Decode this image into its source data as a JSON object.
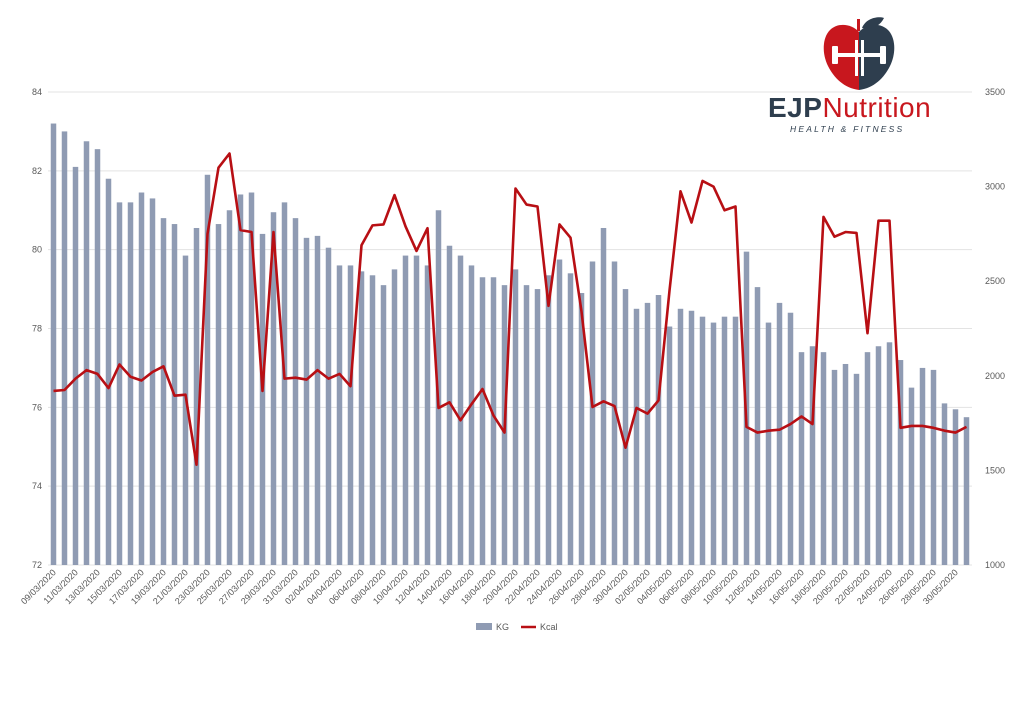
{
  "brand": {
    "name_part1": "EJP",
    "name_part2": "Nutrition",
    "tagline": "HEALTH & FITNESS",
    "colors": {
      "navy": "#2e3e4e",
      "red": "#c8171e"
    }
  },
  "chart_data": {
    "type": "bar",
    "dates": [
      "09/03/2020",
      "10/03/2020",
      "11/03/2020",
      "12/03/2020",
      "13/03/2020",
      "14/03/2020",
      "15/03/2020",
      "16/03/2020",
      "17/03/2020",
      "18/03/2020",
      "19/03/2020",
      "20/03/2020",
      "21/03/2020",
      "22/03/2020",
      "23/03/2020",
      "24/03/2020",
      "25/03/2020",
      "26/03/2020",
      "27/03/2020",
      "28/03/2020",
      "29/03/2020",
      "30/03/2020",
      "31/03/2020",
      "01/04/2020",
      "02/04/2020",
      "03/04/2020",
      "04/04/2020",
      "05/04/2020",
      "06/04/2020",
      "07/04/2020",
      "08/04/2020",
      "09/04/2020",
      "10/04/2020",
      "11/04/2020",
      "12/04/2020",
      "13/04/2020",
      "14/04/2020",
      "15/04/2020",
      "16/04/2020",
      "17/04/2020",
      "18/04/2020",
      "19/04/2020",
      "20/04/2020",
      "21/04/2020",
      "22/04/2020",
      "23/04/2020",
      "24/04/2020",
      "25/04/2020",
      "26/04/2020",
      "27/04/2020",
      "28/04/2020",
      "29/04/2020",
      "30/04/2020",
      "01/05/2020",
      "02/05/2020",
      "03/05/2020",
      "04/05/2020",
      "05/05/2020",
      "06/05/2020",
      "07/05/2020",
      "08/05/2020",
      "09/05/2020",
      "10/05/2020",
      "11/05/2020",
      "12/05/2020",
      "13/05/2020",
      "14/05/2020",
      "15/05/2020",
      "16/05/2020",
      "17/05/2020",
      "18/05/2020",
      "19/05/2020",
      "20/05/2020",
      "21/05/2020",
      "22/05/2020",
      "23/05/2020",
      "24/05/2020",
      "25/05/2020",
      "26/05/2020",
      "27/05/2020",
      "28/05/2020",
      "29/05/2020",
      "30/05/2020",
      "31/05/2020"
    ],
    "tick_labels": [
      "09/03/2020",
      "11/03/2020",
      "13/03/2020",
      "15/03/2020",
      "17/03/2020",
      "19/03/2020",
      "21/03/2020",
      "23/03/2020",
      "25/03/2020",
      "27/03/2020",
      "29/03/2020",
      "31/03/2020",
      "02/04/2020",
      "04/04/2020",
      "06/04/2020",
      "08/04/2020",
      "10/04/2020",
      "12/04/2020",
      "14/04/2020",
      "16/04/2020",
      "18/04/2020",
      "20/04/2020",
      "22/04/2020",
      "24/04/2020",
      "26/04/2020",
      "28/04/2020",
      "30/04/2020",
      "02/05/2020",
      "04/05/2020",
      "06/05/2020",
      "08/05/2020",
      "10/05/2020",
      "12/05/2020",
      "14/05/2020",
      "16/05/2020",
      "18/05/2020",
      "20/05/2020",
      "22/05/2020",
      "24/05/2020",
      "26/05/2020",
      "28/05/2020",
      "30/05/2020"
    ],
    "series": [
      {
        "name": "KG",
        "type": "bar",
        "axis": "left",
        "color": "#8f9bb3",
        "values": [
          83.2,
          83.0,
          82.1,
          82.75,
          82.55,
          81.8,
          81.2,
          81.2,
          81.45,
          81.3,
          80.8,
          80.65,
          79.85,
          80.55,
          81.9,
          80.65,
          81.0,
          81.4,
          81.45,
          80.4,
          80.95,
          81.2,
          80.8,
          80.3,
          80.35,
          80.05,
          79.6,
          79.6,
          79.45,
          79.35,
          79.1,
          79.5,
          79.85,
          79.85,
          79.6,
          81.0,
          80.1,
          79.85,
          79.6,
          79.3,
          79.3,
          79.1,
          79.5,
          79.1,
          79.0,
          79.35,
          79.75,
          79.4,
          78.9,
          79.7,
          80.55,
          79.7,
          79.0,
          78.5,
          78.65,
          78.85,
          78.05,
          78.5,
          78.45,
          78.3,
          78.15,
          78.3,
          78.3,
          79.95,
          79.05,
          78.15,
          78.65,
          78.4,
          77.4,
          77.55,
          77.4,
          76.95,
          77.1,
          76.85,
          77.4,
          77.55,
          77.65,
          77.2,
          76.5,
          77.0,
          76.95,
          76.1,
          75.95,
          75.75
        ]
      },
      {
        "name": "Kcal",
        "type": "line",
        "axis": "right",
        "color": "#b80f14",
        "values": [
          1920,
          1925,
          1985,
          2030,
          2010,
          1935,
          2060,
          1995,
          1975,
          2020,
          2050,
          1895,
          1900,
          1530,
          2750,
          3100,
          3175,
          2770,
          2760,
          1920,
          2760,
          1985,
          1990,
          1980,
          2030,
          1985,
          2010,
          1945,
          2690,
          2795,
          2800,
          2955,
          2790,
          2660,
          2780,
          1830,
          1860,
          1765,
          1850,
          1930,
          1790,
          1700,
          2990,
          2905,
          2895,
          2370,
          2800,
          2730,
          2340,
          1835,
          1865,
          1840,
          1620,
          1830,
          1800,
          1870,
          2450,
          2975,
          2810,
          3030,
          3000,
          2875,
          2895,
          1730,
          1700,
          1710,
          1715,
          1745,
          1785,
          1745,
          2840,
          2735,
          2760,
          2755,
          2225,
          2820,
          2820,
          1725,
          1735,
          1735,
          1725,
          1710,
          1700,
          1730
        ]
      }
    ],
    "y_left": {
      "min": 72,
      "max": 84,
      "ticks": [
        "72",
        "74",
        "76",
        "78",
        "80",
        "82",
        "84"
      ]
    },
    "y_right": {
      "min": 1000,
      "max": 3500,
      "ticks": [
        "1000",
        "1500",
        "2000",
        "2500",
        "3000",
        "3500"
      ]
    },
    "legend": {
      "position": "bottom",
      "items": [
        "KG",
        "Kcal"
      ]
    },
    "grid": true
  }
}
